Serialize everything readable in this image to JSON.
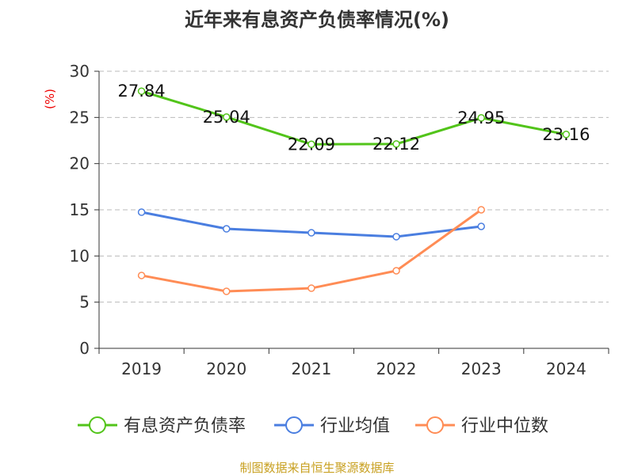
{
  "chart_data": {
    "type": "line",
    "title": "近年来有息资产负债率情况(%)",
    "ylabel": "(%)",
    "categories": [
      "2019",
      "2020",
      "2021",
      "2022",
      "2023",
      "2024"
    ],
    "ylim": [
      0,
      30
    ],
    "yticks": [
      0,
      5,
      10,
      15,
      20,
      25,
      30
    ],
    "grid": true,
    "legend_position": "bottom",
    "series": [
      {
        "name": "有息资产负债率",
        "color": "#52c41a",
        "values": [
          27.84,
          25.04,
          22.09,
          22.12,
          24.95,
          23.16
        ],
        "labels": [
          "27.84",
          "25.04",
          "22.09",
          "22.12",
          "24.95",
          "23.16"
        ]
      },
      {
        "name": "行业均值",
        "color": "#4a7ee0",
        "values": [
          14.74,
          12.94,
          12.51,
          12.09,
          13.2,
          null
        ]
      },
      {
        "name": "行业中位数",
        "color": "#ff8c55",
        "values": [
          7.89,
          6.17,
          6.51,
          8.4,
          15.0,
          null
        ]
      }
    ]
  },
  "footer": "制图数据来自恒生聚源数据库"
}
